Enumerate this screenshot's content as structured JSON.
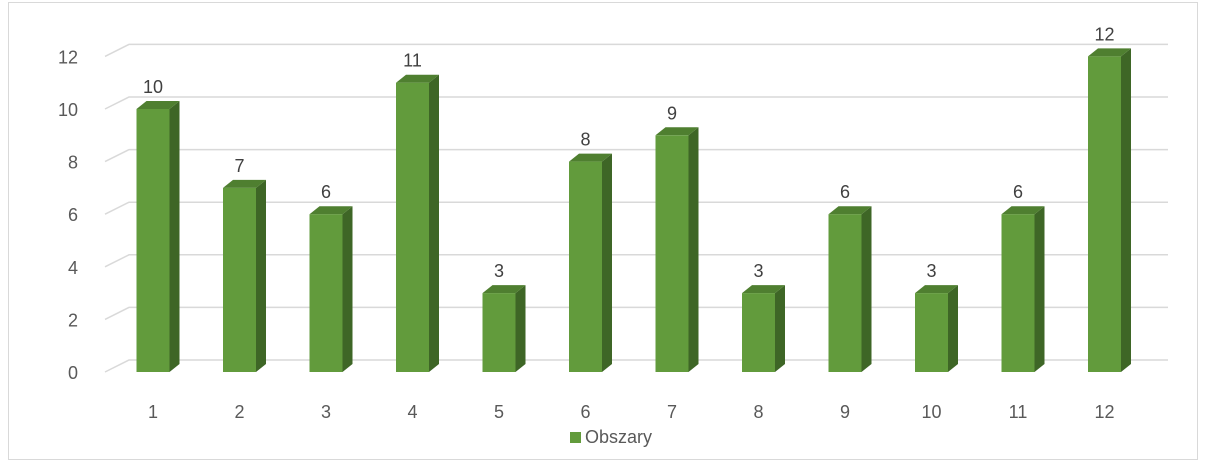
{
  "chart_data": {
    "type": "bar",
    "categories": [
      "1",
      "2",
      "3",
      "4",
      "5",
      "6",
      "7",
      "8",
      "9",
      "10",
      "11",
      "12"
    ],
    "series": [
      {
        "name": "Obszary",
        "values": [
          10,
          7,
          6,
          11,
          3,
          8,
          9,
          3,
          6,
          3,
          6,
          12
        ]
      }
    ],
    "ylim": [
      0,
      12
    ],
    "yticks": [
      "0",
      "2",
      "4",
      "6",
      "8",
      "10",
      "12"
    ],
    "grid": true,
    "legend": "bottom",
    "bar_style": "3d",
    "colors": {
      "bar_front": "#629b3c",
      "bar_side": "#3e6626",
      "bar_top": "#4f7f30",
      "grid": "#d9d9d9"
    }
  }
}
